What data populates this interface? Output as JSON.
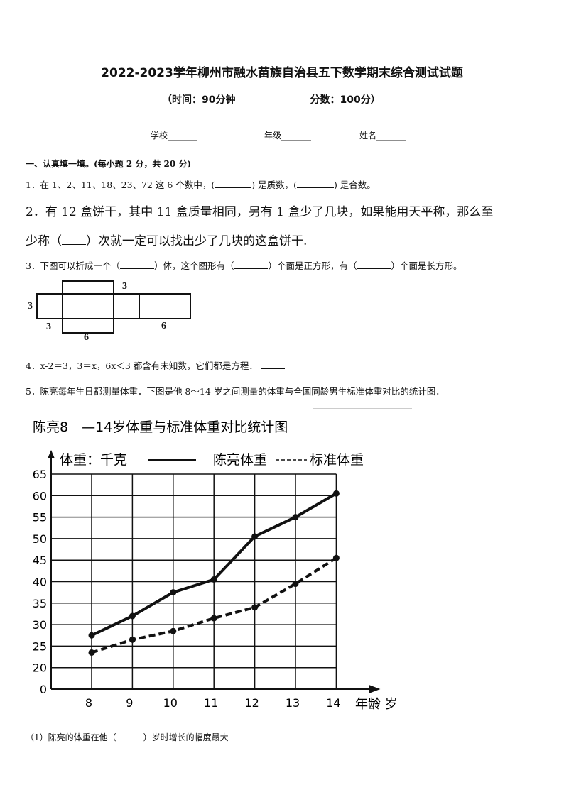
{
  "header": {
    "title": "2022-2023学年柳州市融水苗族自治县五下数学期末综合测试试题",
    "time": "（时间：90分钟",
    "score": "分数：100分）"
  },
  "info": {
    "school": "学校_______",
    "grade": "年级_______",
    "name": "姓名_______"
  },
  "section": "一、认真填一填。(每小题 2 分，共 20 分)",
  "q1": {
    "a": "1．在 1、2、11、18、23、72 这 6 个数中，(",
    "b": ") 是质数，(",
    "c": ") 是合数。"
  },
  "q2": {
    "line1": "2．有 12 盒饼干，其中 11 盒质量相同，另有 1 盒少了几块，如果能用天平称，那么至",
    "line2a": "少称（",
    "line2b": "）次就一定可以找出少了几块的这盒饼干."
  },
  "q3": {
    "a": "3．下图可以折成一个（",
    "b": "）体，这个图形有（",
    "c": "）个面是正方形，有（",
    "d": "）个面是长方形。"
  },
  "net_labels": {
    "top": "3",
    "left": "3",
    "bottom_left": "3",
    "bottom": "6",
    "right": "6"
  },
  "q4": "4．x-2＝3，3＝x，6x＜3 都含有未知数，它们都是方程．",
  "q5": "5．陈亮每年生日都测量体重．下图是他 8～14 岁之间测量的体重与全国同龄男生标准体重对比的统计图．",
  "q5_1": {
    "a": "（1）陈亮的体重在他（",
    "b": "）岁时增长的幅度最大"
  },
  "chart_data": {
    "type": "line",
    "title": "陈亮8　—14岁体重与标准体重对比统计图",
    "ylabel": "体重：千克",
    "xlabel": "年龄 岁",
    "categories": [
      "8",
      "9",
      "10",
      "11",
      "12",
      "13",
      "14"
    ],
    "yticks": [
      "0",
      "20",
      "25",
      "30",
      "35",
      "40",
      "45",
      "50",
      "55",
      "60",
      "65"
    ],
    "ylim": [
      0,
      65
    ],
    "grid": true,
    "legend": "top",
    "series": [
      {
        "name": "陈亮体重",
        "style": "solid",
        "values": [
          27.5,
          32,
          37.5,
          40.5,
          50.5,
          55,
          60.5
        ]
      },
      {
        "name": "标准体重",
        "style": "dashed",
        "values": [
          23.5,
          26.5,
          28.5,
          31.5,
          34,
          39.5,
          45.5
        ]
      }
    ]
  }
}
